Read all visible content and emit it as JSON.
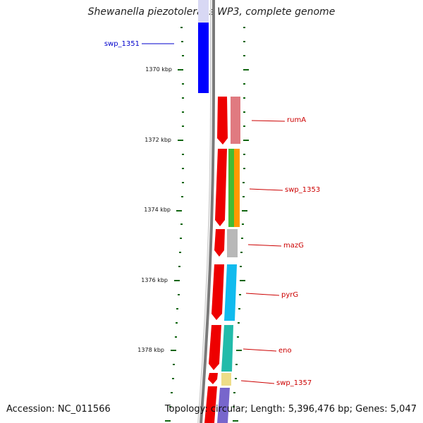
{
  "title": "Shewanella piezotolerans WP3, complete genome",
  "footer": {
    "accession": "Accession: NC_011566",
    "topology": "Topology: circular; Length: 5,396,476 bp; Genes: 5,047"
  },
  "scale": {
    "ticks": [
      "1370 kbp",
      "1372 kbp",
      "1374 kbp",
      "1376 kbp",
      "1378 kbp"
    ]
  },
  "genes": [
    {
      "name": "swp_1351",
      "color": "#0000cc",
      "feature_color": "#0000ff",
      "strand": "minus"
    },
    {
      "name": "rumA",
      "color": "#cc0000",
      "feature_color": "#e07a80",
      "strand": "plus"
    },
    {
      "name": "swp_1353",
      "color": "#cc0000",
      "feature_color": "#44bb33",
      "feature_color2": "#ff9900",
      "strand": "plus"
    },
    {
      "name": "mazG",
      "color": "#cc0000",
      "feature_color": "#b8b8b8",
      "strand": "plus"
    },
    {
      "name": "pyrG",
      "color": "#cc0000",
      "feature_color": "#11bbee",
      "strand": "plus"
    },
    {
      "name": "eno",
      "color": "#cc0000",
      "feature_color": "#22bbaa",
      "strand": "plus"
    },
    {
      "name": "swp_1357",
      "color": "#cc0000",
      "feature_color": "#eedd88",
      "strand": "plus"
    }
  ],
  "colors": {
    "backbone": "#7a7a7a",
    "ticks": "#116611",
    "cds": "#ee0000",
    "label_line_minus": "#0000cc",
    "label_line_plus": "#cc0000"
  }
}
